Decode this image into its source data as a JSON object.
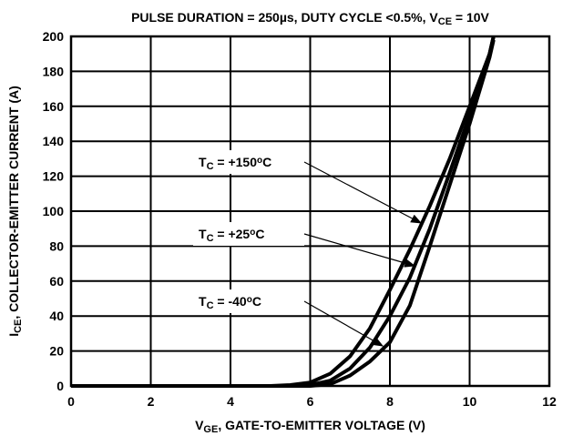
{
  "chart_data": {
    "type": "line",
    "title": [
      {
        "text": "PULSE DURATION = 250µs, DUTY CYCLE <0.5%, V"
      },
      {
        "text": "CE",
        "sub": true
      },
      {
        "text": " = 10V"
      }
    ],
    "x_label": [
      {
        "text": "V"
      },
      {
        "text": "GE",
        "sub": true
      },
      {
        "text": ", GATE-TO-EMITTER VOLTAGE (V)"
      }
    ],
    "y_label": [
      {
        "text": "I"
      },
      {
        "text": "CE",
        "sub": true
      },
      {
        "text": ", COLLECTOR-EMITTER CURRENT (A)"
      }
    ],
    "x": [
      0,
      1,
      2,
      3,
      4,
      5,
      5.5,
      6,
      6.5,
      7,
      7.5,
      8,
      8.5,
      9,
      9.5,
      10,
      10.5,
      10.6
    ],
    "series": [
      {
        "name": [
          {
            "text": "T"
          },
          {
            "text": "C",
            "sub": true
          },
          {
            "text": " = +150"
          },
          {
            "text": "o",
            "sup": true
          },
          {
            "text": "C"
          }
        ],
        "color": "#000000",
        "values": [
          0,
          0,
          0,
          0,
          0,
          0,
          0.5,
          2,
          7,
          17,
          33,
          55,
          78,
          103,
          130,
          160,
          190,
          200
        ]
      },
      {
        "name": [
          {
            "text": "T"
          },
          {
            "text": "C",
            "sub": true
          },
          {
            "text": " = +25"
          },
          {
            "text": "o",
            "sup": true
          },
          {
            "text": "C"
          }
        ],
        "color": "#000000",
        "values": [
          0,
          0,
          0,
          0,
          0,
          0,
          0,
          0.5,
          3,
          10,
          22,
          40,
          62,
          90,
          122,
          155,
          190,
          200
        ]
      },
      {
        "name": [
          {
            "text": "T"
          },
          {
            "text": "C",
            "sub": true
          },
          {
            "text": " = -40"
          },
          {
            "text": "o",
            "sup": true
          },
          {
            "text": "C"
          }
        ],
        "color": "#000000",
        "values": [
          0,
          0,
          0,
          0,
          0,
          0,
          0,
          0,
          1,
          6,
          14,
          25,
          46,
          80,
          115,
          150,
          188,
          198
        ]
      }
    ],
    "xlim": [
      0,
      12
    ],
    "xticks": [
      0,
      2,
      4,
      6,
      8,
      10,
      12
    ],
    "ylim": [
      0,
      200
    ],
    "yticks": [
      0,
      20,
      40,
      60,
      80,
      100,
      120,
      140,
      160,
      180,
      200
    ],
    "grid": true
  }
}
